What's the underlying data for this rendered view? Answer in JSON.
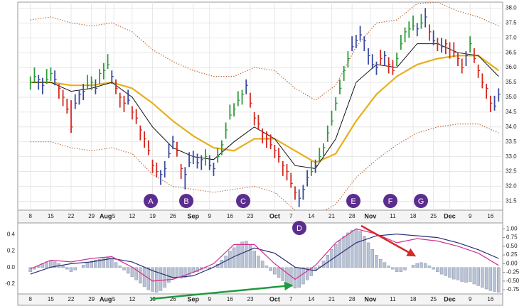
{
  "chart_data": [
    {
      "type": "ohlc",
      "xlim": [
        -3.1,
        116
      ],
      "ylim": [
        31.2,
        38.2
      ],
      "xticks": [
        {
          "value": 0,
          "label": "8"
        },
        {
          "value": 5,
          "label": "15"
        },
        {
          "value": 10,
          "label": "22"
        },
        {
          "value": 15,
          "label": "29"
        },
        {
          "value": 18.5,
          "label": "Aug"
        },
        {
          "value": 20.5,
          "label": "5"
        },
        {
          "value": 25,
          "label": "12"
        },
        {
          "value": 30,
          "label": "19"
        },
        {
          "value": 35,
          "label": "26"
        },
        {
          "value": 40,
          "label": "Sep"
        },
        {
          "value": 44,
          "label": "9"
        },
        {
          "value": 49,
          "label": "16"
        },
        {
          "value": 54,
          "label": "23"
        },
        {
          "value": 60,
          "label": "Oct"
        },
        {
          "value": 64,
          "label": "7"
        },
        {
          "value": 69,
          "label": "14"
        },
        {
          "value": 74,
          "label": "21"
        },
        {
          "value": 79,
          "label": "28"
        },
        {
          "value": 83.5,
          "label": "Nov"
        },
        {
          "value": 89,
          "label": "11"
        },
        {
          "value": 94,
          "label": "18"
        },
        {
          "value": 99,
          "label": "25"
        },
        {
          "value": 103,
          "label": "Dec"
        },
        {
          "value": 108,
          "label": "9"
        },
        {
          "value": 113,
          "label": "16"
        }
      ],
      "yticks": [
        31.5,
        {
          "value": 32,
          "label": "32.0"
        },
        32.5,
        {
          "value": 33,
          "label": "33.0"
        },
        33.5,
        {
          "value": 34,
          "label": "34.0"
        },
        34.5,
        {
          "value": 35,
          "label": "35.0"
        },
        35.5,
        {
          "value": 36,
          "label": "36.0"
        },
        36.5,
        {
          "value": 37,
          "label": "37.0"
        },
        37.5,
        {
          "value": 38,
          "label": "38.0"
        }
      ],
      "grid": true,
      "high": [
        35.7,
        36.0,
        35.75,
        35.65,
        35.95,
        36.0,
        35.9,
        35.45,
        35.25,
        34.95,
        34.9,
        35.1,
        35.25,
        35.45,
        35.75,
        35.7,
        35.6,
        35.95,
        36.15,
        36.45,
        35.9,
        35.6,
        35.15,
        35.05,
        35.25,
        34.7,
        34.6,
        34.05,
        33.85,
        33.55,
        32.9,
        32.8,
        32.55,
        32.85,
        33.45,
        33.7,
        33.5,
        32.75,
        32.65,
        33.15,
        33.2,
        33.1,
        33.05,
        33.25,
        33.05,
        32.8,
        33.3,
        33.55,
        34.15,
        34.75,
        34.8,
        35.2,
        35.25,
        35.6,
        35.15,
        34.5,
        34.4,
        33.95,
        33.85,
        33.75,
        33.4,
        33.3,
        32.85,
        32.75,
        32.45,
        32.0,
        31.9,
        32.05,
        32.55,
        32.85,
        32.9,
        33.3,
        33.45,
        34.05,
        34.55,
        35.0,
        35.6,
        36.05,
        36.55,
        37.05,
        37.1,
        37.4,
        37.05,
        36.65,
        36.45,
        36.2,
        36.6,
        36.55,
        36.35,
        36.25,
        36.5,
        37.1,
        37.35,
        37.55,
        37.75,
        37.5,
        37.8,
        38.0,
        37.45,
        37.25,
        37.0,
        37.0,
        36.95,
        36.85,
        36.85,
        36.5,
        36.3,
        36.55,
        37.05,
        36.65,
        36.1,
        35.8,
        35.45,
        35.05,
        35.05,
        35.3
      ],
      "low": [
        35.25,
        35.5,
        35.25,
        35.1,
        35.45,
        35.55,
        35.4,
        34.95,
        34.7,
        34.45,
        33.8,
        34.6,
        34.75,
        34.9,
        35.25,
        35.25,
        35.1,
        35.45,
        35.6,
        35.95,
        35.45,
        35.1,
        34.65,
        34.5,
        34.75,
        34.25,
        34.1,
        33.55,
        33.3,
        33.05,
        32.45,
        32.3,
        32.05,
        32.3,
        32.95,
        33.25,
        33.0,
        32.25,
        31.9,
        32.65,
        32.75,
        32.6,
        32.55,
        32.7,
        32.55,
        32.35,
        32.8,
        33.05,
        33.6,
        34.25,
        34.35,
        34.7,
        34.75,
        35.1,
        34.65,
        34.05,
        33.9,
        33.45,
        33.3,
        33.25,
        32.95,
        32.8,
        32.35,
        32.2,
        31.95,
        31.55,
        31.3,
        31.55,
        32.0,
        32.35,
        32.45,
        32.8,
        32.95,
        33.5,
        34.05,
        34.55,
        35.1,
        35.55,
        36.0,
        36.55,
        36.65,
        36.9,
        36.55,
        36.1,
        35.95,
        35.75,
        36.1,
        36.05,
        35.8,
        35.75,
        36.05,
        36.6,
        36.85,
        37.0,
        37.25,
        37.05,
        37.3,
        37.35,
        36.9,
        36.75,
        36.55,
        36.5,
        36.45,
        36.3,
        36.35,
        36.05,
        35.8,
        36.05,
        36.5,
        36.15,
        35.65,
        35.3,
        34.95,
        34.5,
        34.55,
        34.85
      ],
      "close": [
        35.5,
        35.7,
        35.6,
        35.4,
        35.6,
        35.8,
        35.6,
        35.3,
        35.0,
        34.6,
        34.0,
        34.8,
        35.1,
        35.2,
        35.4,
        35.5,
        35.3,
        35.8,
        35.9,
        36.1,
        35.7,
        35.3,
        35.0,
        34.8,
        34.9,
        34.5,
        34.3,
        33.9,
        33.6,
        33.2,
        32.7,
        32.5,
        32.4,
        32.6,
        33.1,
        33.5,
        33.2,
        32.6,
        32.4,
        32.8,
        33.0,
        32.8,
        32.9,
        33.0,
        32.7,
        32.6,
        33.0,
        33.4,
        33.9,
        34.4,
        34.6,
        34.9,
        35.1,
        35.4,
        34.8,
        34.3,
        34.1,
        33.8,
        33.6,
        33.4,
        33.2,
        33.0,
        32.7,
        32.5,
        32.1,
        31.8,
        31.6,
        31.9,
        32.3,
        32.5,
        32.7,
        33.0,
        33.3,
        33.8,
        34.2,
        34.8,
        35.3,
        35.9,
        36.3,
        36.7,
        36.9,
        37.1,
        36.9,
        36.4,
        36.1,
        36.0,
        36.3,
        36.4,
        36.1,
        35.9,
        36.3,
        36.8,
        37.2,
        37.3,
        37.4,
        37.3,
        37.5,
        37.7,
        37.2,
        36.9,
        36.8,
        36.7,
        36.8,
        36.6,
        36.5,
        36.3,
        36.0,
        36.4,
        36.8,
        36.3,
        35.9,
        35.5,
        35.3,
        34.8,
        34.7,
        35.1
      ],
      "impulse": [
        "g",
        "g",
        "b",
        "b",
        "g",
        "g",
        "b",
        "r",
        "r",
        "r",
        "r",
        "b",
        "b",
        "b",
        "g",
        "g",
        "b",
        "g",
        "g",
        "g",
        "b",
        "r",
        "r",
        "r",
        "b",
        "r",
        "r",
        "r",
        "r",
        "r",
        "r",
        "r",
        "b",
        "b",
        "b",
        "b",
        "r",
        "r",
        "b",
        "b",
        "b",
        "b",
        "b",
        "g",
        "b",
        "b",
        "g",
        "g",
        "g",
        "g",
        "g",
        "g",
        "g",
        "b",
        "r",
        "r",
        "r",
        "r",
        "r",
        "r",
        "r",
        "r",
        "r",
        "r",
        "r",
        "r",
        "b",
        "b",
        "b",
        "g",
        "b",
        "g",
        "g",
        "g",
        "g",
        "g",
        "g",
        "g",
        "g",
        "b",
        "b",
        "b",
        "b",
        "b",
        "b",
        "b",
        "r",
        "b",
        "r",
        "r",
        "g",
        "g",
        "g",
        "g",
        "g",
        "b",
        "g",
        "b",
        "r",
        "b",
        "r",
        "b",
        "r",
        "r",
        "r",
        "r",
        "r",
        "b",
        "g",
        "r",
        "r",
        "r",
        "r",
        "r",
        "b",
        "b"
      ],
      "palette": {
        "g": "#2e9b3b",
        "r": "#d4281f",
        "b": "#3b4a9e"
      },
      "line_x": [
        0,
        5,
        10,
        15,
        20,
        25,
        30,
        35,
        40,
        45,
        50,
        55,
        60,
        65,
        70,
        75,
        80,
        85,
        90,
        95,
        100,
        105,
        110,
        115
      ],
      "lines": [
        {
          "color": "#b8602f",
          "dotted": true,
          "values": [
            37.6,
            37.7,
            37.5,
            37.4,
            37.5,
            37.2,
            36.6,
            36.2,
            35.9,
            35.7,
            35.7,
            36.0,
            35.9,
            35.3,
            34.9,
            35.4,
            36.7,
            37.5,
            37.6,
            38.15,
            38.2,
            37.9,
            37.7,
            37.4
          ]
        },
        {
          "color": "#b8602f",
          "dotted": true,
          "values": [
            33.5,
            33.5,
            33.3,
            33.2,
            33.3,
            33.1,
            32.4,
            32.0,
            31.9,
            31.8,
            31.9,
            32.0,
            31.8,
            31.2,
            31.0,
            31.4,
            32.3,
            32.9,
            33.4,
            33.8,
            34.0,
            34.1,
            34.1,
            33.8
          ]
        },
        {
          "color": "#e6b01c",
          "width": 2.2,
          "values": [
            35.5,
            35.5,
            35.4,
            35.4,
            35.5,
            35.3,
            34.8,
            34.2,
            33.7,
            33.3,
            33.2,
            33.6,
            33.6,
            33.2,
            32.8,
            33.1,
            34.2,
            35.1,
            35.7,
            36.1,
            36.3,
            36.4,
            36.4,
            35.9
          ]
        },
        {
          "color": "#111111",
          "width": 1,
          "values": [
            35.5,
            35.5,
            35.2,
            35.3,
            35.5,
            35.0,
            34.0,
            33.3,
            33.0,
            32.9,
            33.5,
            34.0,
            33.6,
            32.7,
            32.6,
            33.6,
            35.5,
            36.1,
            36.0,
            36.8,
            36.8,
            36.5,
            36.4,
            35.7
          ]
        }
      ],
      "annotations": [
        "A",
        "B",
        "C",
        "D",
        "E",
        "F",
        "G"
      ]
    },
    {
      "type": "macd",
      "xlim": [
        -3.1,
        116
      ],
      "ylim": [
        -0.32,
        0.54
      ],
      "y2lim": [
        -0.87,
        1.17
      ],
      "xticks": [
        {
          "value": 0,
          "label": "8"
        },
        {
          "value": 5,
          "label": "15"
        },
        {
          "value": 10,
          "label": "22"
        },
        {
          "value": 15,
          "label": "29"
        },
        {
          "value": 18.5,
          "label": "Aug"
        },
        {
          "value": 20.5,
          "label": "5"
        },
        {
          "value": 25,
          "label": "12"
        },
        {
          "value": 30,
          "label": "19"
        },
        {
          "value": 35,
          "label": "26"
        },
        {
          "value": 40,
          "label": "Sep"
        },
        {
          "value": 44,
          "label": "9"
        },
        {
          "value": 49,
          "label": "16"
        },
        {
          "value": 54,
          "label": "23"
        },
        {
          "value": 60,
          "label": "Oct"
        },
        {
          "value": 64,
          "label": "7"
        },
        {
          "value": 69,
          "label": "14"
        },
        {
          "value": 74,
          "label": "21"
        },
        {
          "value": 79,
          "label": "28"
        },
        {
          "value": 83.5,
          "label": "Nov"
        },
        {
          "value": 89,
          "label": "11"
        },
        {
          "value": 94,
          "label": "18"
        },
        {
          "value": 99,
          "label": "25"
        },
        {
          "value": 103,
          "label": "Dec"
        },
        {
          "value": 108,
          "label": "9"
        },
        {
          "value": 113,
          "label": "16"
        }
      ],
      "yticks": [
        0.4,
        0.2,
        {
          "value": 0,
          "label": "0.0"
        },
        -0.2
      ],
      "y2ticks": [
        {
          "value": 1,
          "label": "1.00"
        },
        0.75,
        {
          "value": 0.5,
          "label": "0.50"
        },
        0.25,
        {
          "value": 0,
          "label": "0.00"
        },
        -0.25,
        {
          "value": -0.5,
          "label": "-0.50"
        },
        -0.75
      ],
      "histogram_color": "#b9c3d6",
      "histogram": [
        -0.05,
        -0.02,
        0.02,
        0.05,
        0.07,
        0.08,
        0.07,
        0.05,
        0.02,
        -0.02,
        -0.05,
        -0.03,
        0.0,
        0.03,
        0.06,
        0.08,
        0.09,
        0.1,
        0.11,
        0.12,
        0.1,
        0.06,
        0.02,
        -0.03,
        -0.07,
        -0.11,
        -0.15,
        -0.19,
        -0.23,
        -0.27,
        -0.29,
        -0.3,
        -0.28,
        -0.24,
        -0.18,
        -0.13,
        -0.12,
        -0.13,
        -0.12,
        -0.09,
        -0.06,
        -0.05,
        -0.03,
        -0.01,
        -0.02,
        0.0,
        0.04,
        0.09,
        0.14,
        0.2,
        0.24,
        0.28,
        0.31,
        0.32,
        0.27,
        0.2,
        0.14,
        0.08,
        0.02,
        -0.04,
        -0.08,
        -0.12,
        -0.16,
        -0.2,
        -0.23,
        -0.25,
        -0.24,
        -0.2,
        -0.15,
        -0.1,
        -0.04,
        0.02,
        0.08,
        0.15,
        0.22,
        0.28,
        0.33,
        0.38,
        0.42,
        0.45,
        0.46,
        0.44,
        0.38,
        0.3,
        0.22,
        0.15,
        0.1,
        0.06,
        0.02,
        -0.02,
        -0.05,
        -0.05,
        -0.03,
        0.0,
        0.03,
        0.05,
        0.06,
        0.05,
        0.02,
        -0.02,
        -0.05,
        -0.08,
        -0.1,
        -0.12,
        -0.14,
        -0.15,
        -0.17,
        -0.18,
        -0.17,
        -0.2,
        -0.22,
        -0.24,
        -0.26,
        -0.28,
        -0.29,
        -0.3
      ],
      "x": [
        0,
        5,
        10,
        15,
        20,
        25,
        30,
        35,
        40,
        45,
        50,
        55,
        60,
        65,
        70,
        75,
        80,
        85,
        90,
        95,
        100,
        105,
        110,
        115
      ],
      "series": [
        {
          "color": "#2c2f7a",
          "axis": "y2",
          "values": [
            -0.3,
            -0.1,
            0.0,
            0.05,
            0.15,
            0.05,
            -0.2,
            -0.4,
            -0.35,
            -0.1,
            0.2,
            0.45,
            0.3,
            -0.1,
            -0.2,
            0.2,
            0.6,
            0.8,
            0.85,
            0.8,
            0.75,
            0.6,
            0.4,
            0.15
          ]
        },
        {
          "color": "#d0318f",
          "axis": "y2",
          "values": [
            -0.15,
            0.1,
            0.05,
            0.15,
            0.2,
            -0.1,
            -0.5,
            -0.45,
            -0.25,
            0.0,
            0.55,
            0.55,
            0.0,
            -0.45,
            -0.05,
            0.6,
            1.0,
            0.85,
            0.6,
            0.72,
            0.65,
            0.5,
            0.3,
            -0.05
          ]
        }
      ]
    }
  ]
}
